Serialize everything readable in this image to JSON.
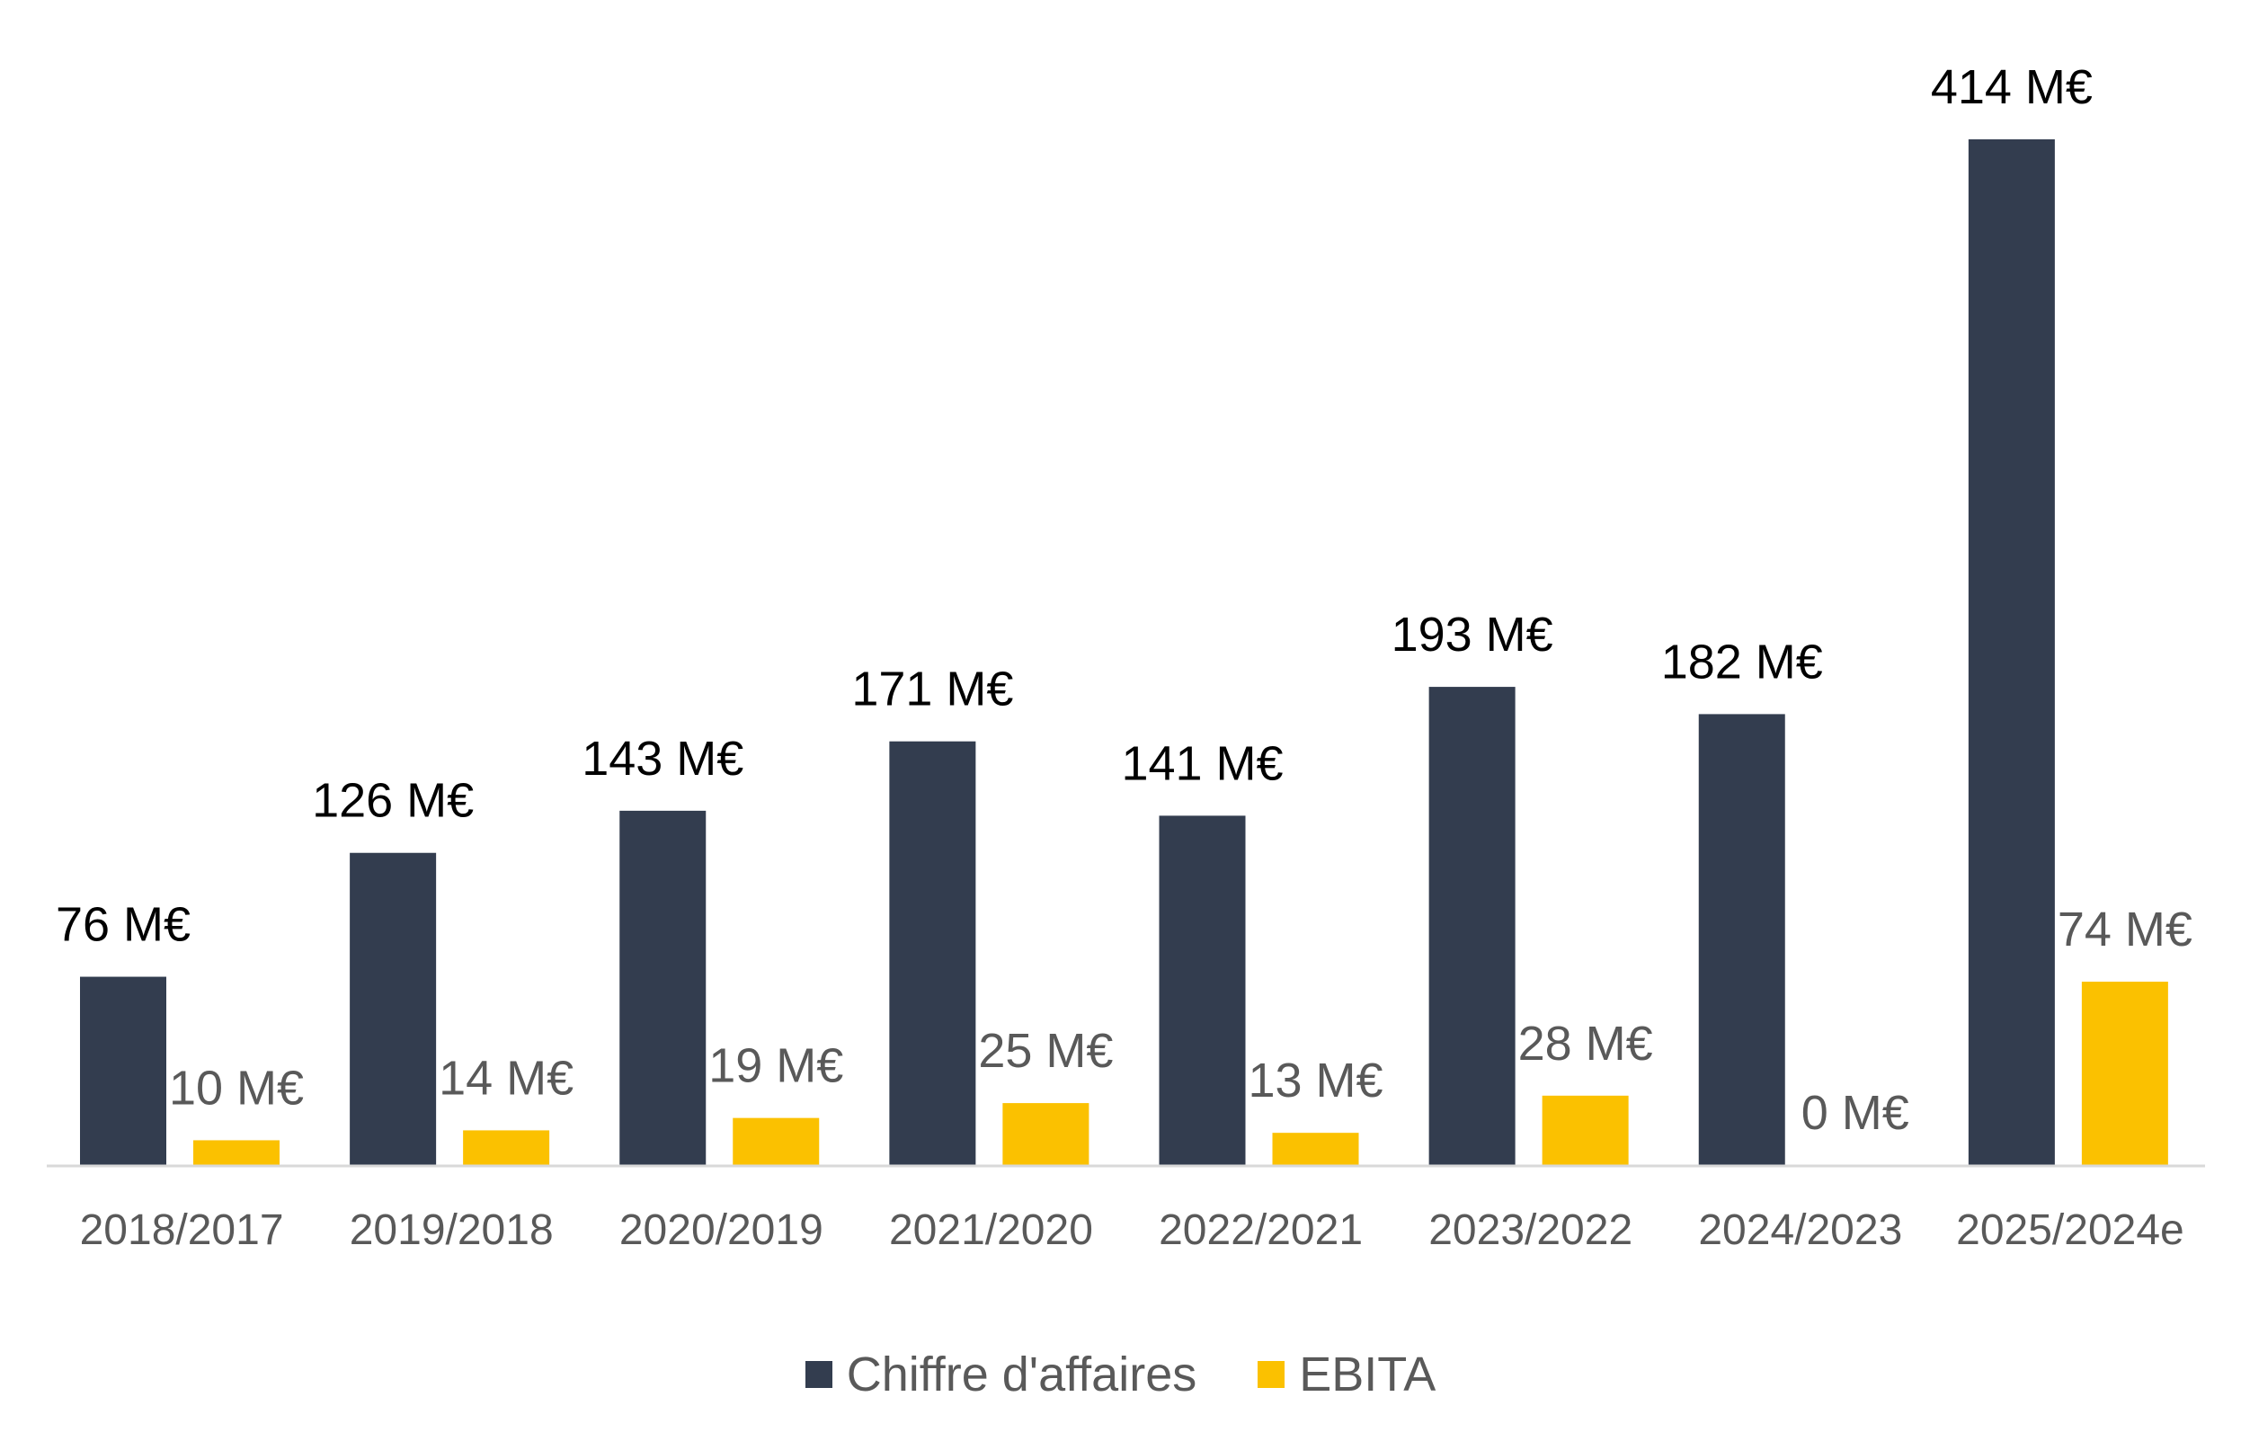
{
  "chart_data": {
    "type": "bar",
    "title": "",
    "xlabel": "",
    "ylabel": "",
    "unit": "M€",
    "categories": [
      "2018/2017",
      "2019/2018",
      "2020/2019",
      "2021/2020",
      "2022/2021",
      "2023/2022",
      "2024/2023",
      "2025/2024e"
    ],
    "series": [
      {
        "name": "Chiffre d'affaires",
        "color": "#333D4F",
        "label_color": "#000000",
        "values": [
          76,
          126,
          143,
          171,
          141,
          193,
          182,
          414
        ],
        "labels": [
          "76 M€",
          "126 M€",
          "143 M€",
          "171 M€",
          "141 M€",
          "193 M€",
          "182 M€",
          "414 M€"
        ]
      },
      {
        "name": "EBITA",
        "color": "#FBC100",
        "label_color": "#595959",
        "values": [
          10,
          14,
          19,
          25,
          13,
          28,
          0,
          74
        ],
        "labels": [
          "10 M€",
          "14 M€",
          "19 M€",
          "25 M€",
          "13 M€",
          "28 M€",
          "0 M€",
          "74 M€"
        ]
      }
    ],
    "ylim": [
      0,
      420
    ],
    "grid": false,
    "legend_position": "bottom"
  }
}
